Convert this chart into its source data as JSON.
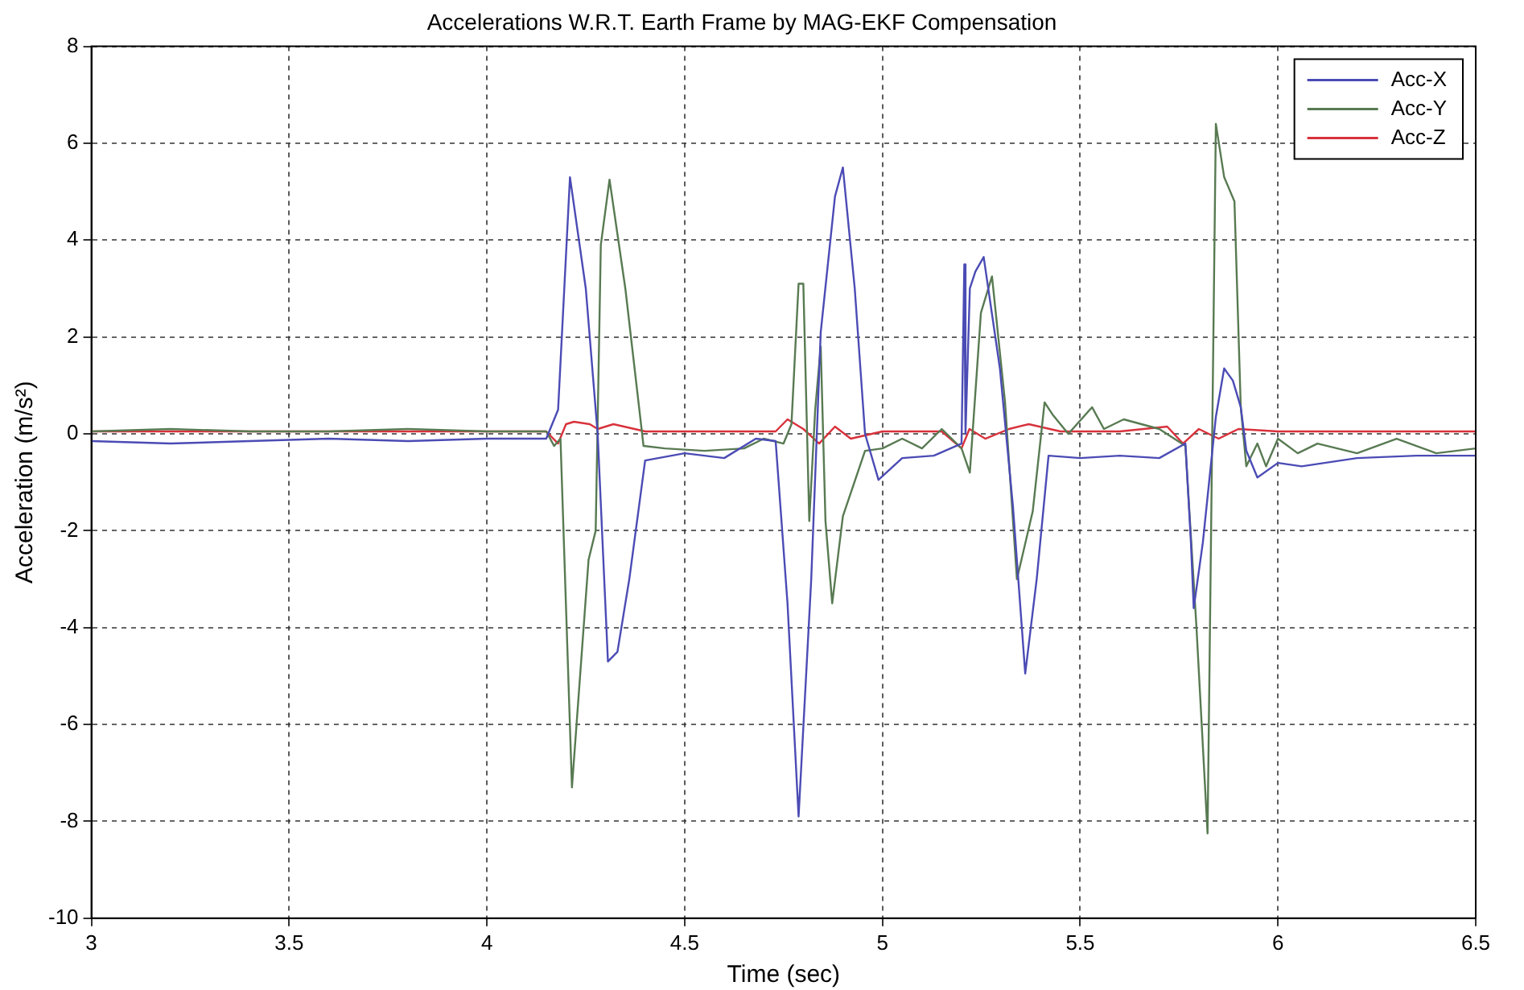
{
  "chart_data": {
    "type": "line",
    "title": "Accelerations W.R.T. Earth Frame by MAG-EKF Compensation",
    "xlabel": "Time (sec)",
    "ylabel": "Acceleration (m/s²)",
    "xlim": [
      3,
      6.5
    ],
    "xticks": [
      3,
      3.5,
      4,
      4.5,
      5,
      5.5,
      6,
      6.5
    ],
    "ylim": [
      -10,
      8
    ],
    "yticks": [
      -10,
      -8,
      -6,
      -4,
      -2,
      0,
      2,
      4,
      6,
      8
    ],
    "grid": true,
    "legend": "top right",
    "marker": "none",
    "line_style": "solid",
    "series": [
      {
        "name": "Acc-X",
        "color": "#4b4bb5",
        "x": [
          3,
          3.2,
          3.4,
          3.6,
          3.8,
          4.0,
          4.15,
          4.18,
          4.21,
          4.25,
          4.28,
          4.306,
          4.33,
          4.36,
          4.4,
          4.5,
          4.6,
          4.68,
          4.73,
          4.76,
          4.788,
          4.82,
          4.844,
          4.88,
          4.9,
          4.93,
          4.956,
          4.99,
          5.05,
          5.13,
          5.2,
          5.207,
          5.21,
          5.221,
          5.235,
          5.256,
          5.297,
          5.33,
          5.361,
          5.39,
          5.42,
          5.5,
          5.6,
          5.7,
          5.766,
          5.78,
          5.787,
          5.81,
          5.843,
          5.864,
          5.886,
          5.906,
          5.92,
          5.948,
          6.0,
          6.06,
          6.2,
          6.35,
          6.5
        ],
        "values": [
          -0.15,
          -0.2,
          -0.15,
          -0.1,
          -0.15,
          -0.1,
          -0.1,
          0.5,
          5.3,
          3.0,
          0.0,
          -4.7,
          -4.5,
          -3.0,
          -0.55,
          -0.4,
          -0.5,
          -0.1,
          -0.15,
          -3.5,
          -7.9,
          -3.0,
          2.1,
          4.9,
          5.5,
          3.0,
          0.0,
          -0.95,
          -0.5,
          -0.45,
          -0.2,
          3.5,
          0.0,
          3.0,
          3.35,
          3.65,
          1.35,
          -1.5,
          -4.95,
          -3.0,
          -0.45,
          -0.5,
          -0.45,
          -0.5,
          -0.2,
          -2.25,
          -3.6,
          -2.25,
          0.35,
          1.35,
          1.1,
          0.55,
          -0.35,
          -0.9,
          -0.6,
          -0.67,
          -0.5,
          -0.45,
          -0.45
        ]
      },
      {
        "name": "Acc-Y",
        "color": "#587a52",
        "x": [
          3,
          3.2,
          3.4,
          3.6,
          3.8,
          4.0,
          4.15,
          4.17,
          4.186,
          4.215,
          4.24,
          4.257,
          4.275,
          4.288,
          4.31,
          4.35,
          4.396,
          4.45,
          4.55,
          4.65,
          4.7,
          4.75,
          4.77,
          4.788,
          4.8,
          4.815,
          4.83,
          4.844,
          4.856,
          4.873,
          4.9,
          4.956,
          5.0,
          5.05,
          5.1,
          5.15,
          5.2,
          5.221,
          5.249,
          5.277,
          5.31,
          5.34,
          5.38,
          5.41,
          5.43,
          5.47,
          5.53,
          5.56,
          5.61,
          5.7,
          5.766,
          5.794,
          5.822,
          5.843,
          5.864,
          5.89,
          5.906,
          5.92,
          5.948,
          5.97,
          6.0,
          6.05,
          6.1,
          6.2,
          6.3,
          6.4,
          6.5
        ],
        "values": [
          0.05,
          0.1,
          0.05,
          0.05,
          0.1,
          0.05,
          0.05,
          -0.25,
          -0.1,
          -7.3,
          -4.5,
          -2.6,
          -2.0,
          3.9,
          5.25,
          3.0,
          -0.25,
          -0.3,
          -0.35,
          -0.3,
          -0.1,
          -0.2,
          0.2,
          3.1,
          3.1,
          -1.8,
          0.5,
          1.8,
          -1.8,
          -3.5,
          -1.7,
          -0.35,
          -0.3,
          -0.1,
          -0.3,
          0.1,
          -0.3,
          -0.8,
          2.5,
          3.25,
          0.65,
          -3.0,
          -1.6,
          0.65,
          0.4,
          0.0,
          0.55,
          0.1,
          0.3,
          0.1,
          -0.25,
          -4.0,
          -8.25,
          6.4,
          5.3,
          4.8,
          0.55,
          -0.67,
          -0.2,
          -0.67,
          -0.1,
          -0.4,
          -0.2,
          -0.4,
          -0.1,
          -0.4,
          -0.3
        ]
      },
      {
        "name": "Acc-Z",
        "color": "#d8323c",
        "x": [
          3,
          3.5,
          4.0,
          4.15,
          4.18,
          4.2,
          4.22,
          4.26,
          4.28,
          4.32,
          4.4,
          4.6,
          4.73,
          4.76,
          4.8,
          4.84,
          4.88,
          4.92,
          5.0,
          5.15,
          5.2,
          5.22,
          5.26,
          5.32,
          5.37,
          5.45,
          5.6,
          5.72,
          5.76,
          5.8,
          5.85,
          5.9,
          6.0,
          6.5
        ],
        "values": [
          0.05,
          0.05,
          0.05,
          0.05,
          -0.2,
          0.2,
          0.25,
          0.2,
          0.1,
          0.2,
          0.05,
          0.05,
          0.05,
          0.3,
          0.1,
          -0.2,
          0.15,
          -0.1,
          0.05,
          0.05,
          -0.3,
          0.1,
          -0.1,
          0.1,
          0.2,
          0.05,
          0.05,
          0.15,
          -0.2,
          0.1,
          -0.1,
          0.1,
          0.05,
          0.05
        ]
      }
    ]
  }
}
